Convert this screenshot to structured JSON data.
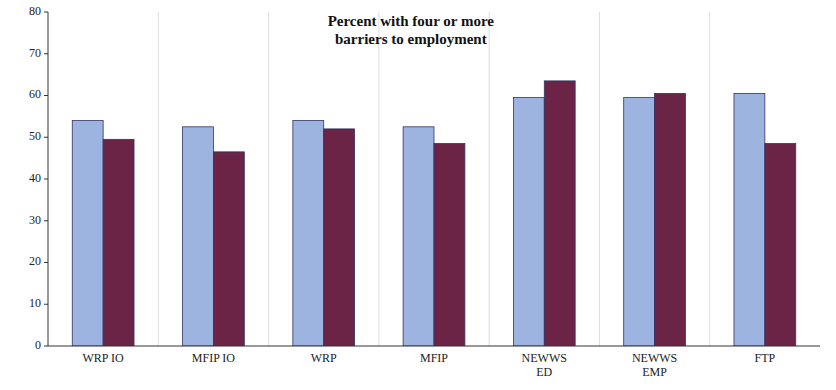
{
  "chart_data": {
    "type": "bar",
    "title": "Percent with four or more\nbarriers to employment",
    "categories": [
      "WRP IO",
      "MFIP IO",
      "WRP",
      "MFIP",
      "NEWWS\nED",
      "NEWWS\nEMP",
      "FTP"
    ],
    "series": [
      {
        "color": "#9DB4E0",
        "values": [
          54,
          52.5,
          54,
          52.5,
          59.5,
          59.5,
          60.5
        ]
      },
      {
        "color": "#6B2346",
        "values": [
          49.5,
          46.5,
          52,
          48.5,
          63.5,
          60.5,
          48.5
        ]
      }
    ],
    "ylim": [
      0,
      80
    ],
    "yticks": [
      0,
      10,
      20,
      30,
      40,
      50,
      60,
      70,
      80
    ],
    "grid": false
  }
}
